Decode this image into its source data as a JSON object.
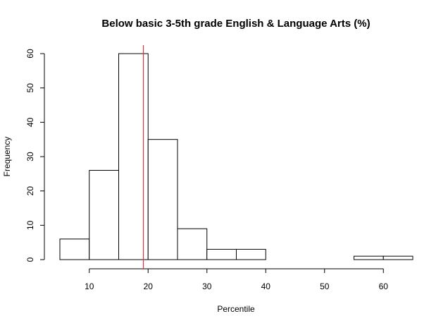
{
  "chart_data": {
    "type": "bar",
    "subtype": "histogram",
    "title": "Below basic 3-5th grade English & Language Arts (%)",
    "xlabel": "Percentile",
    "ylabel": "Frequency",
    "bins": [
      {
        "from": 5,
        "to": 10,
        "count": 6
      },
      {
        "from": 10,
        "to": 15,
        "count": 26
      },
      {
        "from": 15,
        "to": 20,
        "count": 60
      },
      {
        "from": 20,
        "to": 25,
        "count": 35
      },
      {
        "from": 25,
        "to": 30,
        "count": 9
      },
      {
        "from": 30,
        "to": 35,
        "count": 3
      },
      {
        "from": 35,
        "to": 40,
        "count": 3
      },
      {
        "from": 40,
        "to": 45,
        "count": 0
      },
      {
        "from": 45,
        "to": 50,
        "count": 0
      },
      {
        "from": 50,
        "to": 55,
        "count": 0
      },
      {
        "from": 55,
        "to": 60,
        "count": 1
      },
      {
        "from": 60,
        "to": 65,
        "count": 1
      }
    ],
    "xlim": [
      5,
      65
    ],
    "ylim": [
      0,
      60
    ],
    "xticks": [
      10,
      20,
      30,
      40,
      50,
      60
    ],
    "yticks": [
      0,
      10,
      20,
      30,
      40,
      50,
      60
    ],
    "reference_line": {
      "x": 19.2,
      "color": "#e0323c"
    },
    "grid": false,
    "legend": "none"
  }
}
